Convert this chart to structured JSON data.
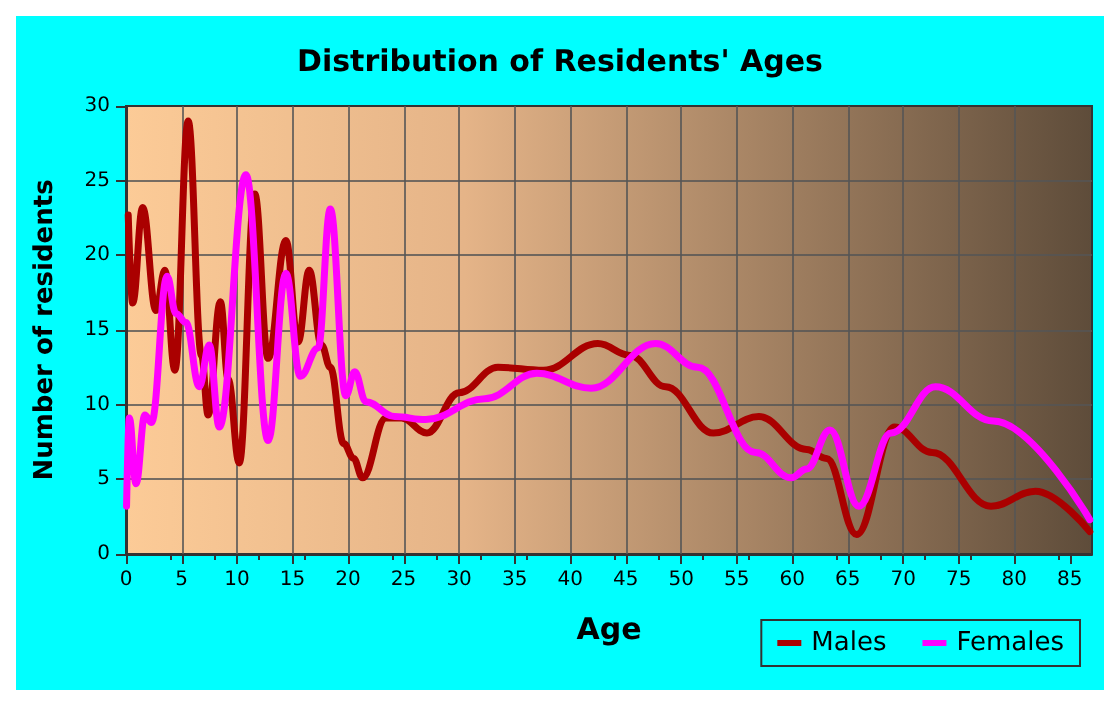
{
  "chart_data": {
    "type": "line",
    "title": "Distribution of Residents' Ages",
    "xlabel": "Age",
    "ylabel": "Number of residents",
    "xlim": [
      0,
      87
    ],
    "xticks": [
      0,
      5,
      10,
      15,
      20,
      25,
      30,
      35,
      40,
      45,
      50,
      55,
      60,
      65,
      70,
      75,
      80,
      85
    ],
    "ylim": [
      0,
      30
    ],
    "yticks": [
      0,
      5,
      10,
      15,
      20,
      25,
      30
    ],
    "grid": true,
    "legend": "bottom right",
    "marker": "none",
    "line_style": "solid",
    "series": [
      {
        "name": "Males",
        "color": "#aa0000",
        "x": [
          0.2,
          0.6,
          1.5,
          2.7,
          3.5,
          4.4,
          5.6,
          6.8,
          7.4,
          8.5,
          9.2,
          10.2,
          11.6,
          12.8,
          14.4,
          15.5,
          16.5,
          17.6,
          18.4,
          19.6,
          20.5,
          21.3,
          23.4,
          24.8,
          27.1,
          30,
          33.5,
          37.6,
          42.5,
          45.4,
          48.6,
          52.9,
          57,
          61.3,
          63.1,
          65.8,
          69.2,
          72.6,
          77.9,
          81.9,
          86.8
        ],
        "values": [
          22.7,
          16.8,
          23.2,
          16.3,
          19,
          12.3,
          29,
          13.3,
          9.3,
          16.9,
          11.7,
          6.1,
          24.1,
          13.1,
          21,
          14.2,
          19,
          14,
          12.5,
          7.4,
          6.4,
          5.1,
          9.1,
          9.1,
          8.1,
          10.8,
          12.5,
          12.3,
          14.1,
          13.3,
          11.2,
          8.1,
          9.2,
          7,
          6.4,
          1.3,
          8.5,
          6.8,
          3.2,
          4.2,
          1.5
        ]
      },
      {
        "name": "Females",
        "color": "#ff00ff",
        "x": [
          0.05,
          0.3,
          0.9,
          1.7,
          2.3,
          3.7,
          4.5,
          5.4,
          6.6,
          7.5,
          8.4,
          10.8,
          12.8,
          14.4,
          15.7,
          17.3,
          18.4,
          19.8,
          20.6,
          21.6,
          24.2,
          27,
          32.3,
          37,
          41.9,
          47.7,
          51.5,
          56.7,
          59.9,
          61.3,
          63.4,
          66,
          68.9,
          72.9,
          78.1,
          86.8
        ],
        "values": [
          3.2,
          9.1,
          4.7,
          9.3,
          8.8,
          18.6,
          16.1,
          15.5,
          11.2,
          14,
          8.5,
          25.4,
          7.6,
          18.8,
          11.9,
          13.8,
          23.1,
          10.6,
          12.2,
          10.2,
          9.2,
          9,
          10.4,
          12.1,
          11.1,
          14.1,
          12.5,
          6.8,
          5.1,
          5.7,
          8.3,
          3.2,
          8.1,
          11.2,
          8.9,
          2.3
        ]
      }
    ]
  }
}
